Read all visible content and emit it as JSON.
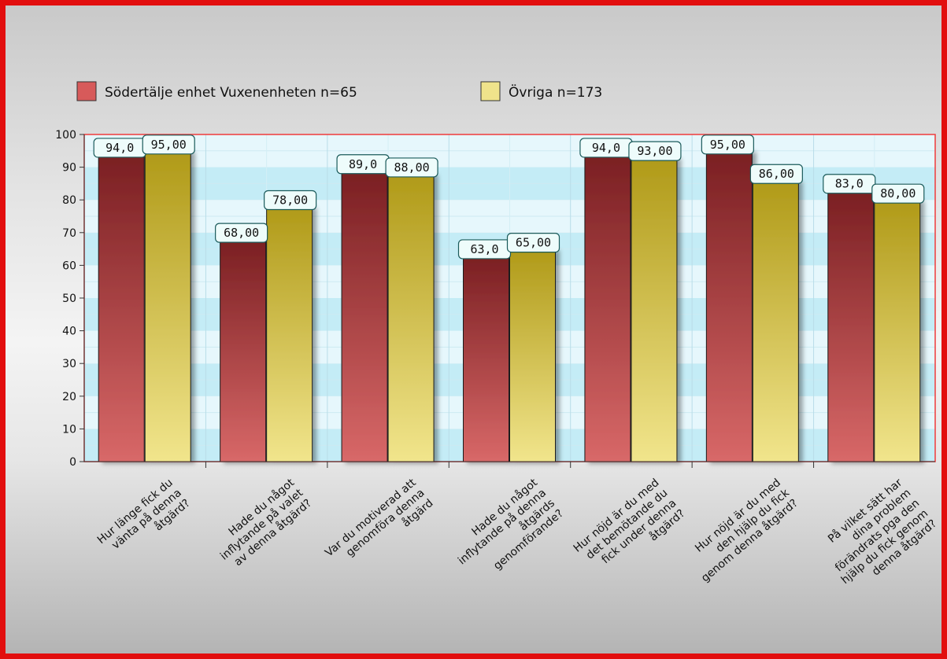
{
  "chart_data": {
    "type": "bar",
    "categories": [
      [
        "Hur länge fick du",
        "vänta på denna",
        "åtgärd?"
      ],
      [
        "Hade du något",
        "inflytande på valet",
        "av denna åtgärd?"
      ],
      [
        "Var du motiverad att",
        "genomföra denna",
        "åtgärd"
      ],
      [
        "Hade du något",
        "inflytande på denna",
        "åtgärds",
        "genomförande?"
      ],
      [
        "Hur nöjd är du med",
        "det bemötande du",
        "fick under denna",
        "åtgärd?"
      ],
      [
        "Hur nöjd är du med",
        "den hjälp du fick",
        "genom denna åtgärd?"
      ],
      [
        "På vilket sätt har",
        "dina problem",
        "förändrats pga den",
        "hjälp du fick genom",
        "denna åtgärd?"
      ]
    ],
    "series": [
      {
        "name": "Södertälje enhet Vuxenenheten n=65",
        "values": [
          94,
          68,
          89,
          63,
          94,
          95,
          83
        ],
        "labels": [
          "94,0",
          "68,00",
          "89,0",
          "63,0",
          "94,0",
          "95,00",
          "83,0"
        ],
        "color_top": "#7a1f22",
        "color_bottom": "#d86868"
      },
      {
        "name": "Övriga n=173",
        "values": [
          95,
          78,
          88,
          65,
          93,
          86,
          80
        ],
        "labels": [
          "95,00",
          "78,00",
          "88,00",
          "65,00",
          "93,00",
          "86,00",
          "80,00"
        ],
        "color_top": "#b09a18",
        "color_bottom": "#f1e58c"
      }
    ],
    "ylim": [
      0,
      100
    ],
    "yticks": [
      "0",
      "10",
      "20",
      "30",
      "40",
      "50",
      "60",
      "70",
      "80",
      "90",
      "100"
    ],
    "title": "",
    "xlabel": "",
    "ylabel": "",
    "grid": true,
    "legend_position": "top-left",
    "plot_colors": {
      "band_light": "#e6f7fc",
      "band_dark": "#c4ecf6",
      "border": "#ef3b3b"
    }
  }
}
